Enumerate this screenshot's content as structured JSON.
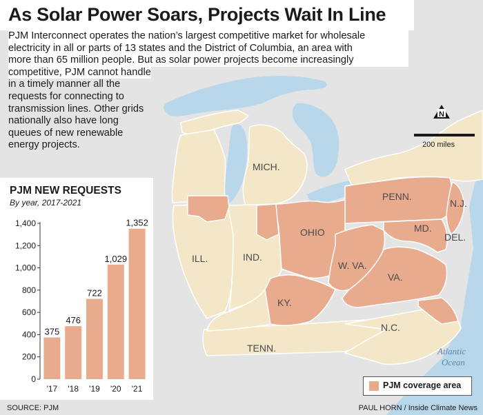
{
  "title": "As Solar Power Soars, Projects Wait In Line",
  "intro_lines": [
    "PJM Interconnect operates the nation’s largest competitive market for wholesale",
    "electricity in all or parts of 13 states and the District of Columbia, an area with",
    "more than 65 million people. But as solar power projects become increasingly",
    "competitive, PJM cannot handle",
    "in a timely manner all the",
    "requests for connecting to",
    "transmission lines. Other grids",
    "nationally also have long",
    "queues of new renewable",
    "energy projects."
  ],
  "map": {
    "states": [
      "MICH.",
      "PENN.",
      "N.J.",
      "OHIO",
      "MD.",
      "DEL.",
      "ILL.",
      "IND.",
      "W. VA.",
      "VA.",
      "KY.",
      "TENN.",
      "N.C."
    ],
    "ocean": [
      "Atlantic",
      "Ocean"
    ],
    "scale_label": "200 miles",
    "north_icon": "N",
    "colors": {
      "pjm": "#e9ab8e",
      "state": "#f3e7c8",
      "water": "#b9d7ea",
      "land_other": "#e4e4e4",
      "border": "#ffffff"
    }
  },
  "legend": {
    "label": "PJM coverage area",
    "color": "#e9ab8e"
  },
  "chart_data": {
    "type": "bar",
    "title": "PJM NEW REQUESTS",
    "subtitle": "By year, 2017-2021",
    "categories": [
      "'17",
      "'18",
      "'19",
      "'20",
      "'21"
    ],
    "values": [
      375,
      476,
      722,
      1029,
      1352
    ],
    "data_labels": [
      "375",
      "476",
      "722",
      "1,029",
      "1,352"
    ],
    "yticks": [
      0,
      200,
      400,
      600,
      800,
      1000,
      1200,
      1400
    ],
    "ytick_labels": [
      "0",
      "200",
      "400",
      "600",
      "800",
      "1,000",
      "1,200",
      "1,400"
    ],
    "ylim": [
      0,
      1400
    ],
    "bar_color": "#e9ab8e",
    "grid": false
  },
  "source": "SOURCE: PJM",
  "credit": "PAUL HORN / Inside Climate News"
}
